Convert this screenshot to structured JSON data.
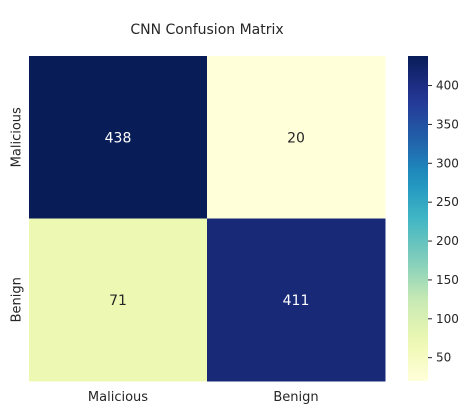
{
  "chart_data": {
    "type": "heatmap",
    "title": "CNN Confusion Matrix",
    "xlabel": "",
    "ylabel": "",
    "x_categories": [
      "Malicious",
      "Benign"
    ],
    "y_categories": [
      "Malicious",
      "Benign"
    ],
    "values": [
      [
        438,
        20
      ],
      [
        71,
        411
      ]
    ],
    "colormap": "YlGnBu",
    "colorbar": {
      "min": 20,
      "max": 438,
      "ticks": [
        50,
        100,
        150,
        200,
        250,
        300,
        350,
        400
      ]
    },
    "grid": false,
    "legend": "colorbar-right"
  }
}
